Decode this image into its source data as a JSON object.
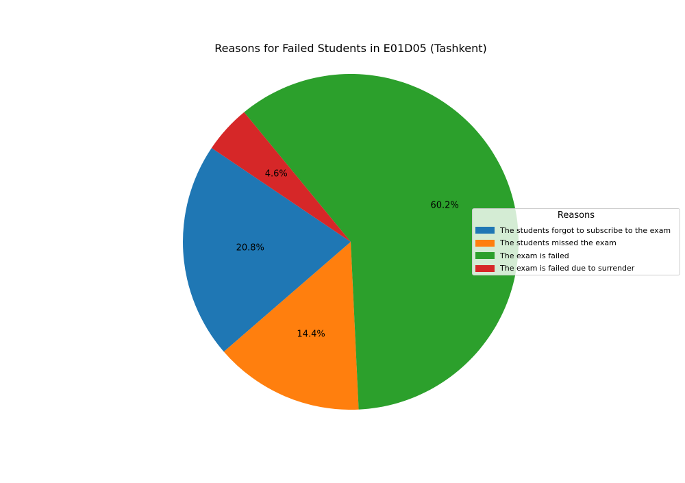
{
  "chart_data": {
    "type": "pie",
    "title": "Reasons for Failed Students in E01D05 (Tashkent)",
    "legend_title": "Reasons",
    "legend_placement": "right",
    "slices": [
      {
        "label": "The students forgot to subscribe to the exam",
        "value": 20.8,
        "display": "20.8%",
        "color": "#1f77b4"
      },
      {
        "label": "The students missed the exam",
        "value": 14.4,
        "display": "14.4%",
        "color": "#ff7f0e"
      },
      {
        "label": "The exam is failed",
        "value": 60.2,
        "display": "60.2%",
        "color": "#2ca02c"
      },
      {
        "label": "The exam is failed due to surrender",
        "value": 4.6,
        "display": "4.6%",
        "color": "#d62728"
      }
    ]
  }
}
